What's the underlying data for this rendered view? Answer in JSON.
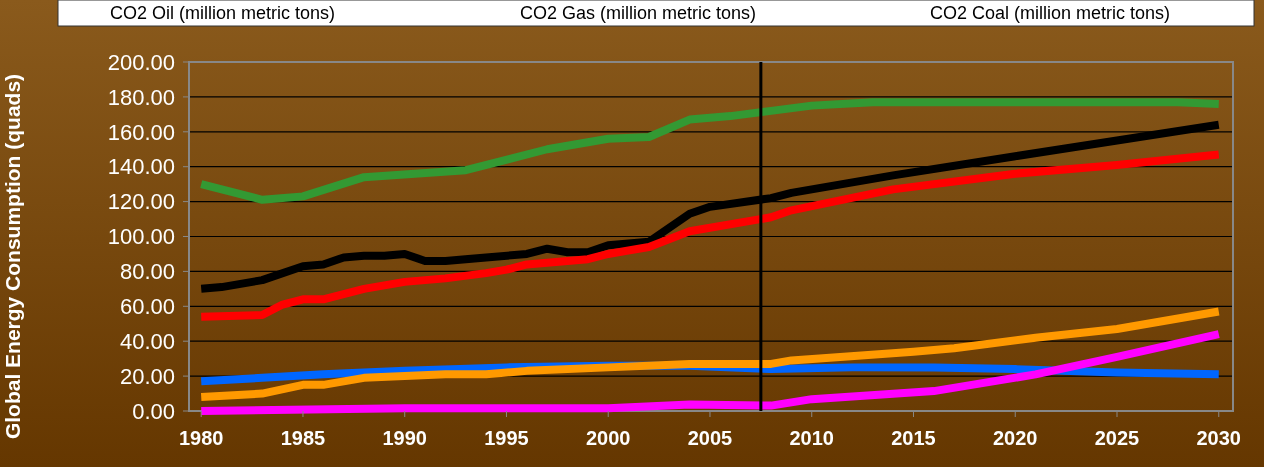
{
  "chart_data": {
    "type": "line",
    "ylabel": "Global Energy Consumption (quads)",
    "annotations": [
      "CO2 Oil (million metric tons)",
      "CO2 Gas (million metric tons)",
      "CO2 Coal (million metric tons)"
    ],
    "xlim": [
      1979.4,
      2030.7
    ],
    "xticks": [
      1980,
      1985,
      1990,
      1995,
      2000,
      2005,
      2010,
      2015,
      2020,
      2025,
      2030
    ],
    "ylim": [
      0,
      200
    ],
    "yticks": [
      {
        "value": 0,
        "label": "0.00"
      },
      {
        "value": 20,
        "label": "20.00"
      },
      {
        "value": 40,
        "label": "40.00"
      },
      {
        "value": 60,
        "label": "60.00"
      },
      {
        "value": 80,
        "label": "80.00"
      },
      {
        "value": 100,
        "label": "100.00"
      },
      {
        "value": 120,
        "label": "120.00"
      },
      {
        "value": 140,
        "label": "140.00"
      },
      {
        "value": 160,
        "label": "160.00"
      },
      {
        "value": 180,
        "label": "180.00"
      },
      {
        "value": 200,
        "label": "200.00"
      }
    ],
    "grid": "y",
    "line_style": "solid",
    "ref_lines": [
      {
        "axis": "x",
        "value": 2007.5,
        "color": "#000000"
      }
    ],
    "series": [
      {
        "color": "#339933",
        "x": [
          1980,
          1983,
          1985,
          1988,
          1993,
          1997,
          2000,
          2002,
          2004,
          2006,
          2008,
          2010,
          2013,
          2028,
          2030
        ],
        "values": [
          130,
          121,
          123,
          134,
          138,
          150,
          156,
          157,
          167,
          169,
          172,
          175,
          177,
          177,
          176
        ]
      },
      {
        "color": "#000000",
        "x": [
          1980,
          1981,
          1983,
          1985,
          1986,
          1987,
          1988,
          1989,
          1990,
          1991,
          1992,
          1994,
          1996,
          1997,
          1998,
          1999,
          2000,
          2002,
          2004,
          2005,
          2008,
          2009,
          2014,
          2020,
          2025,
          2030
        ],
        "values": [
          70,
          71,
          75,
          83,
          84,
          88,
          89,
          89,
          90,
          86,
          86,
          88,
          90,
          93,
          91,
          91,
          95,
          97,
          113,
          117,
          122,
          125,
          135,
          146,
          155,
          164
        ]
      },
      {
        "color": "#ff0000",
        "x": [
          1980,
          1983,
          1984,
          1985,
          1986,
          1988,
          1990,
          1992,
          1994,
          1995,
          1996,
          1998,
          1999,
          2000,
          2002,
          2004,
          2008,
          2009,
          2014,
          2020,
          2025,
          2030
        ],
        "values": [
          54,
          55,
          61,
          64,
          64,
          70,
          74,
          76,
          79,
          81,
          84,
          86,
          87,
          90,
          94,
          103,
          111,
          115,
          127,
          136,
          141,
          147
        ]
      },
      {
        "color": "#0066ff",
        "x": [
          1980,
          1983,
          1986,
          1990,
          1995,
          2000,
          2004,
          2008,
          2012,
          2016,
          2020,
          2025,
          2030
        ],
        "values": [
          17,
          19,
          21,
          23,
          25,
          26,
          26,
          24,
          25,
          25,
          24,
          22,
          21
        ]
      },
      {
        "color": "#ff9900",
        "x": [
          1980,
          1983,
          1985,
          1986,
          1988,
          1990,
          1992,
          1994,
          1996,
          2000,
          2004,
          2008,
          2009,
          2015,
          2017,
          2021,
          2025,
          2030
        ],
        "values": [
          8,
          10,
          15,
          15,
          19,
          20,
          21,
          21,
          23,
          25,
          27,
          27,
          29,
          34,
          36,
          42,
          47,
          57
        ]
      },
      {
        "color": "#ff00ff",
        "x": [
          1980,
          1990,
          2000,
          2004,
          2008,
          2010,
          2016,
          2021,
          2025,
          2030
        ],
        "values": [
          0,
          1.6,
          1.6,
          3.7,
          3.1,
          6.8,
          11.4,
          21,
          31,
          44
        ]
      }
    ]
  }
}
